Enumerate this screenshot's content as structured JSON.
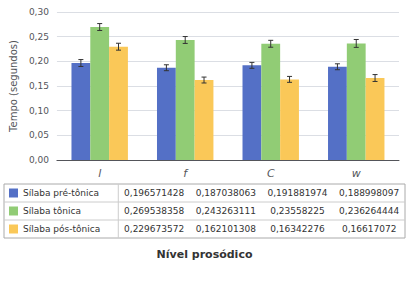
{
  "chart_data": {
    "type": "bar",
    "categories": [
      "l",
      "f",
      "C",
      "w"
    ],
    "series": [
      {
        "name": "Sílaba pré-tônica",
        "values": [
          0.196571428,
          0.187038063,
          0.191881974,
          0.188998097
        ],
        "errors": [
          0.007,
          0.006,
          0.006,
          0.006
        ],
        "value_labels": [
          "0,196571428",
          "0,187038063",
          "0,191881974",
          "0,188998097"
        ]
      },
      {
        "name": "Sílaba tônica",
        "values": [
          0.269538358,
          0.243263111,
          0.23558225,
          0.236264444
        ],
        "errors": [
          0.007,
          0.007,
          0.007,
          0.008
        ],
        "value_labels": [
          "0,269538358",
          "0,243263111",
          "0,23558225",
          "0,236264444"
        ]
      },
      {
        "name": "Sílaba pós-tônica",
        "values": [
          0.229673572,
          0.162101308,
          0.16342276,
          0.16617072
        ],
        "errors": [
          0.007,
          0.006,
          0.006,
          0.007
        ],
        "value_labels": [
          "0,229673572",
          "0,162101308",
          "0,16342276",
          "0,16617072"
        ]
      }
    ],
    "ylabel": "Tempo (segundos)",
    "xlabel": "Nível prosódico",
    "ylim": [
      0.0,
      0.3
    ],
    "yticks": [
      {
        "value": 0.0,
        "label": "0,00"
      },
      {
        "value": 0.05,
        "label": "0,05"
      },
      {
        "value": 0.1,
        "label": "0,10"
      },
      {
        "value": 0.15,
        "label": "0,15"
      },
      {
        "value": 0.2,
        "label": "0,20"
      },
      {
        "value": 0.25,
        "label": "0,25"
      },
      {
        "value": 0.3,
        "label": "0,30"
      }
    ],
    "grid": true
  }
}
